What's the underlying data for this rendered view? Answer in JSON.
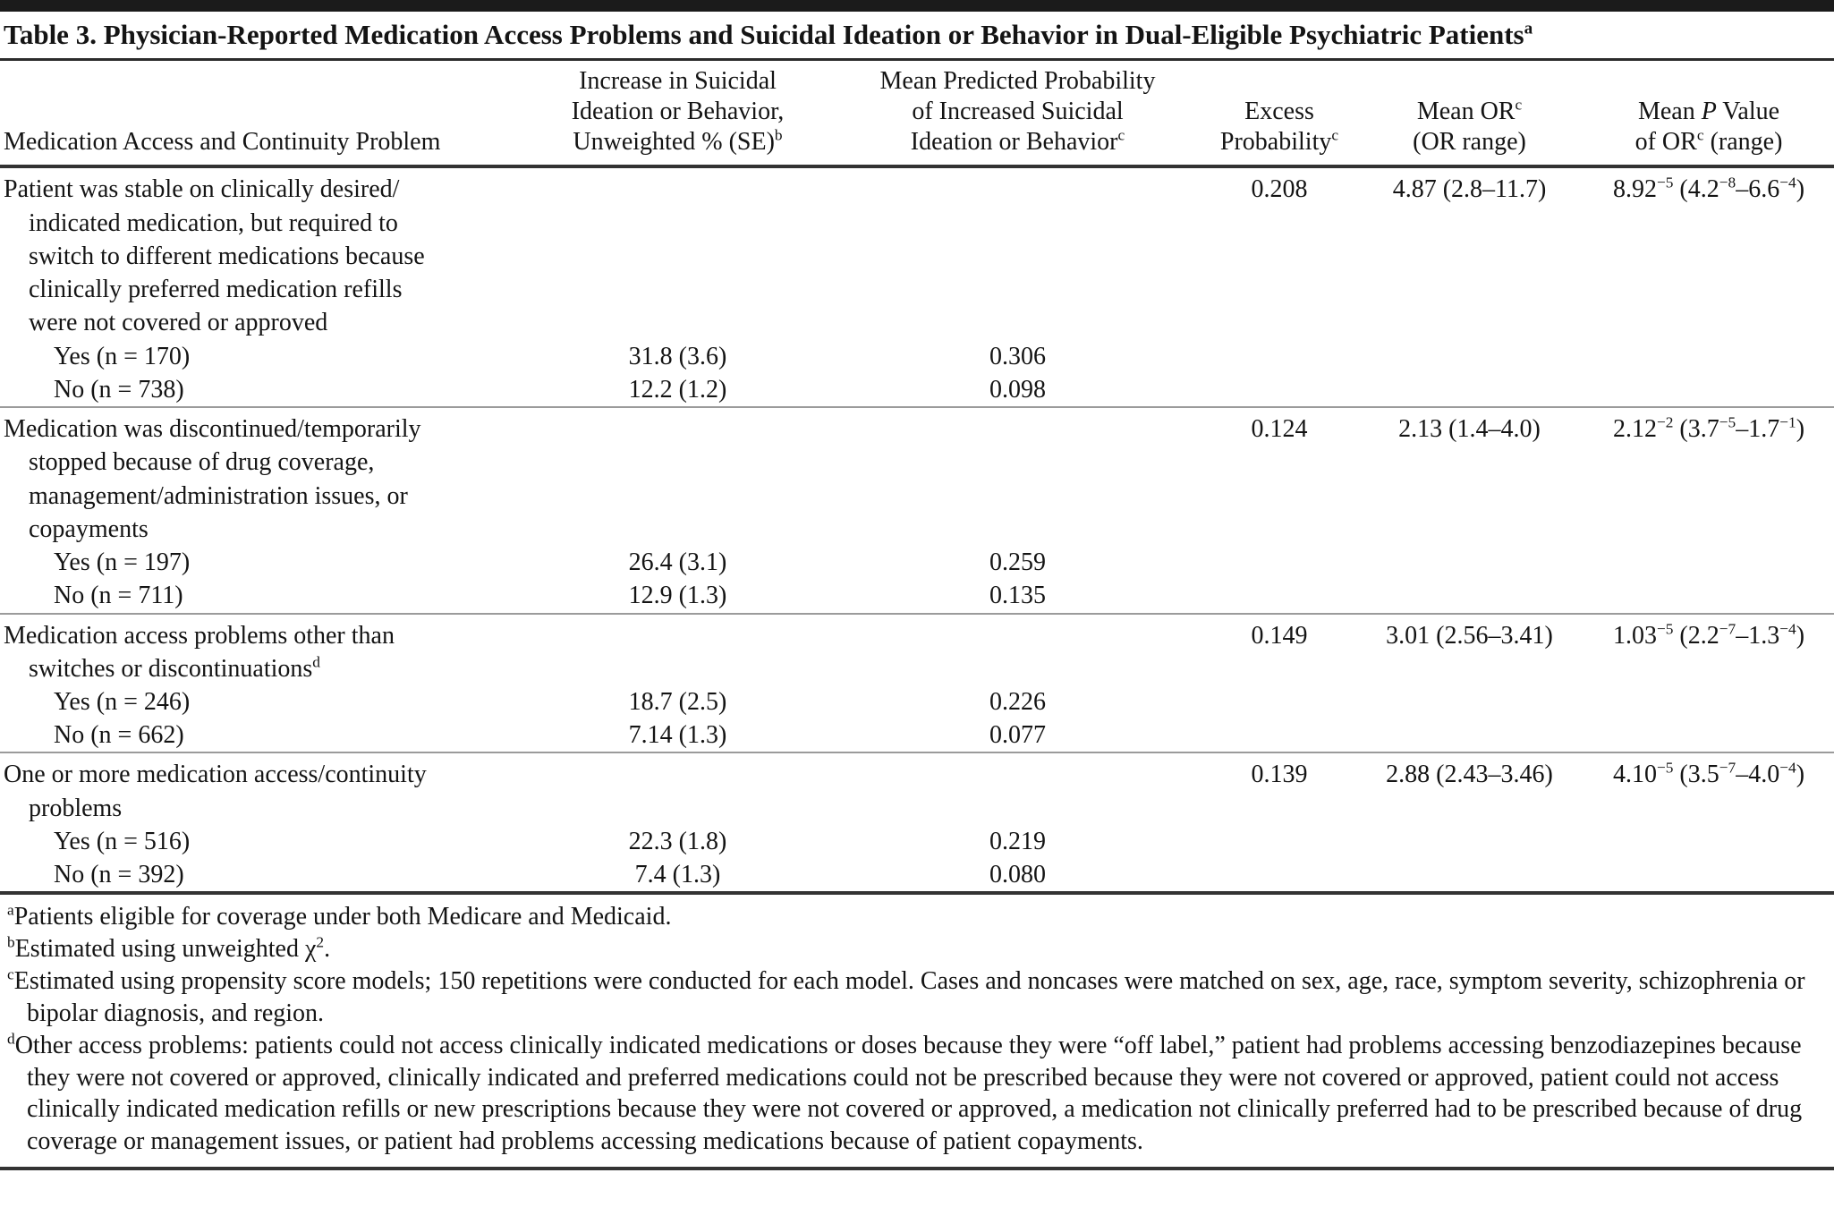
{
  "title": "Table 3. Physician-Reported Medication Access Problems and Suicidal Ideation or Behavior in Dual-Eligible Psychiatric Patients^{a}",
  "columns": [
    "Medication Access and Continuity Problem",
    "Increase in Suicidal\nIdeation or Behavior,\nUnweighted % (SE)^{b}",
    "Mean Predicted Probability\nof Increased Suicidal\nIdeation or Behavior^{c}",
    "Excess\nProbability^{c}",
    "Mean OR^{c}\n(OR range)",
    "Mean *P* Value\nof OR^{c} (range)"
  ],
  "groups": [
    {
      "problem": "Patient was stable on clinically desired/\nindicated medication, but required to\nswitch to different medications because\nclinically preferred medication refills\nwere not covered or approved",
      "excess_probability": "0.208",
      "mean_or": "4.87 (2.8–11.7)",
      "mean_p_value": "8.92^{−5} (4.2^{−8}–6.6^{−4})",
      "rows": [
        {
          "label": "Yes (n = 170)",
          "unweighted_pct_se": "31.8 (3.6)",
          "mean_predicted_probability": "0.306"
        },
        {
          "label": "No (n = 738)",
          "unweighted_pct_se": "12.2 (1.2)",
          "mean_predicted_probability": "0.098"
        }
      ]
    },
    {
      "problem": "Medication was discontinued/temporarily\nstopped because of drug coverage,\nmanagement/administration issues, or\ncopayments",
      "excess_probability": "0.124",
      "mean_or": "2.13 (1.4–4.0)",
      "mean_p_value": "2.12^{−2} (3.7^{−5}–1.7^{−1})",
      "rows": [
        {
          "label": "Yes (n = 197)",
          "unweighted_pct_se": "26.4 (3.1)",
          "mean_predicted_probability": "0.259"
        },
        {
          "label": "No (n = 711)",
          "unweighted_pct_se": "12.9 (1.3)",
          "mean_predicted_probability": "0.135"
        }
      ]
    },
    {
      "problem": "Medication access problems other than\nswitches or discontinuations^{d}",
      "excess_probability": "0.149",
      "mean_or": "3.01 (2.56–3.41)",
      "mean_p_value": "1.03^{−5} (2.2^{−7}–1.3^{−4})",
      "rows": [
        {
          "label": "Yes (n = 246)",
          "unweighted_pct_se": "18.7 (2.5)",
          "mean_predicted_probability": "0.226"
        },
        {
          "label": "No (n = 662)",
          "unweighted_pct_se": "7.14 (1.3)",
          "mean_predicted_probability": "0.077"
        }
      ]
    },
    {
      "problem": "One or more medication access/continuity\nproblems",
      "excess_probability": "0.139",
      "mean_or": "2.88 (2.43–3.46)",
      "mean_p_value": "4.10^{−5} (3.5^{−7}–4.0^{−4})",
      "rows": [
        {
          "label": "Yes (n = 516)",
          "unweighted_pct_se": "22.3 (1.8)",
          "mean_predicted_probability": "0.219"
        },
        {
          "label": "No (n = 392)",
          "unweighted_pct_se": "7.4 (1.3)",
          "mean_predicted_probability": "0.080"
        }
      ]
    }
  ],
  "footnotes": [
    "^{a}Patients eligible for coverage under both Medicare and Medicaid.",
    "^{b}Estimated using unweighted χ^{2}.",
    "^{c}Estimated using propensity score models; 150 repetitions were conducted for each model. Cases and noncases were matched on sex, age, race, symptom severity, schizophrenia or bipolar diagnosis, and region.",
    "^{d}Other access problems: patients could not access clinically indicated medications or doses because they were “off label,” patient had problems accessing benzodiazepines because they were not covered or approved, clinically indicated and preferred medications could not be prescribed because they were not covered or approved, patient could not access clinically indicated medication refills or new prescriptions because they were not covered or approved, a medication not clinically preferred had to be prescribed because of drug coverage or management issues, or patient had problems accessing medications because of patient copayments."
  ]
}
